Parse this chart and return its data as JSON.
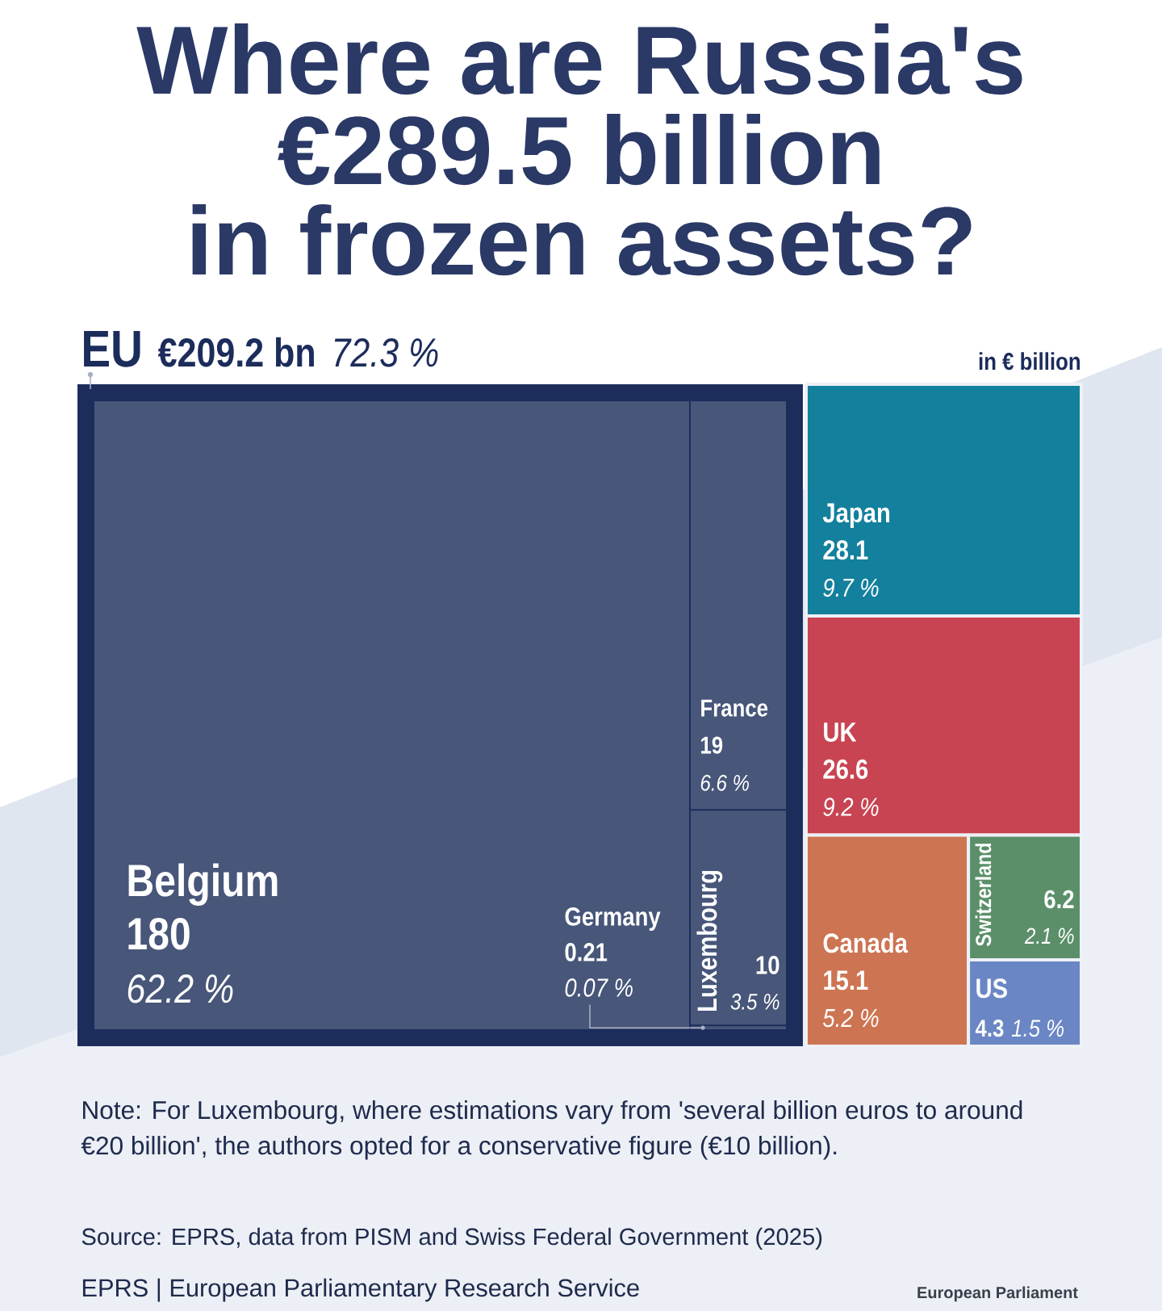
{
  "chart_data": {
    "type": "other",
    "title": "Where are Russia's €289.5 billion in frozen assets?",
    "categories": [
      "Belgium",
      "France",
      "Luxembourg",
      "Germany",
      "Japan",
      "UK",
      "Canada",
      "Switzerland",
      "US"
    ],
    "series": [
      {
        "name": "EU",
        "color": "#1c2c5b",
        "colors": [
          "#475679",
          "#475679",
          "#475679",
          "#475679",
          null,
          null,
          null,
          null,
          null
        ],
        "values": [
          180,
          19,
          10,
          0.21,
          null,
          null,
          null,
          null,
          null
        ]
      },
      {
        "colors": [
          null,
          null,
          null,
          null,
          "#13809d",
          "#c84452",
          "#cd7452",
          "#5b8f69",
          "#6a86c4"
        ],
        "values": [
          null,
          null,
          null,
          null,
          28.1,
          26.6,
          15.1,
          6.2,
          4.3
        ]
      }
    ],
    "data_labels": true,
    "annotations": [
      "€209.2 bn",
      "72.3 %",
      "in € billion",
      "Note: For Luxembourg, where estimations vary from 'several billion euros to around €20 billion', the authors opted for a conservative figure (€10 billion).",
      "Source: EPRS, data from PISM and Swiss Federal Government (2025)",
      "EPRS | European Parliamentary Research Service",
      "European Parliament",
      {
        "text": "62.2 %",
        "x": "Belgium"
      },
      {
        "text": "6.6 %",
        "x": "France"
      },
      {
        "text": "3.5 %",
        "x": "Luxembourg"
      },
      {
        "text": "0.07 %",
        "x": "Germany"
      },
      {
        "text": "9.7 %",
        "x": "Japan"
      },
      {
        "text": "9.2 %",
        "x": "UK"
      },
      {
        "text": "5.2 %",
        "x": "Canada"
      },
      {
        "text": "2.1 %",
        "x": "Switzerland"
      },
      {
        "text": "1.5 %",
        "x": "US"
      }
    ]
  }
}
